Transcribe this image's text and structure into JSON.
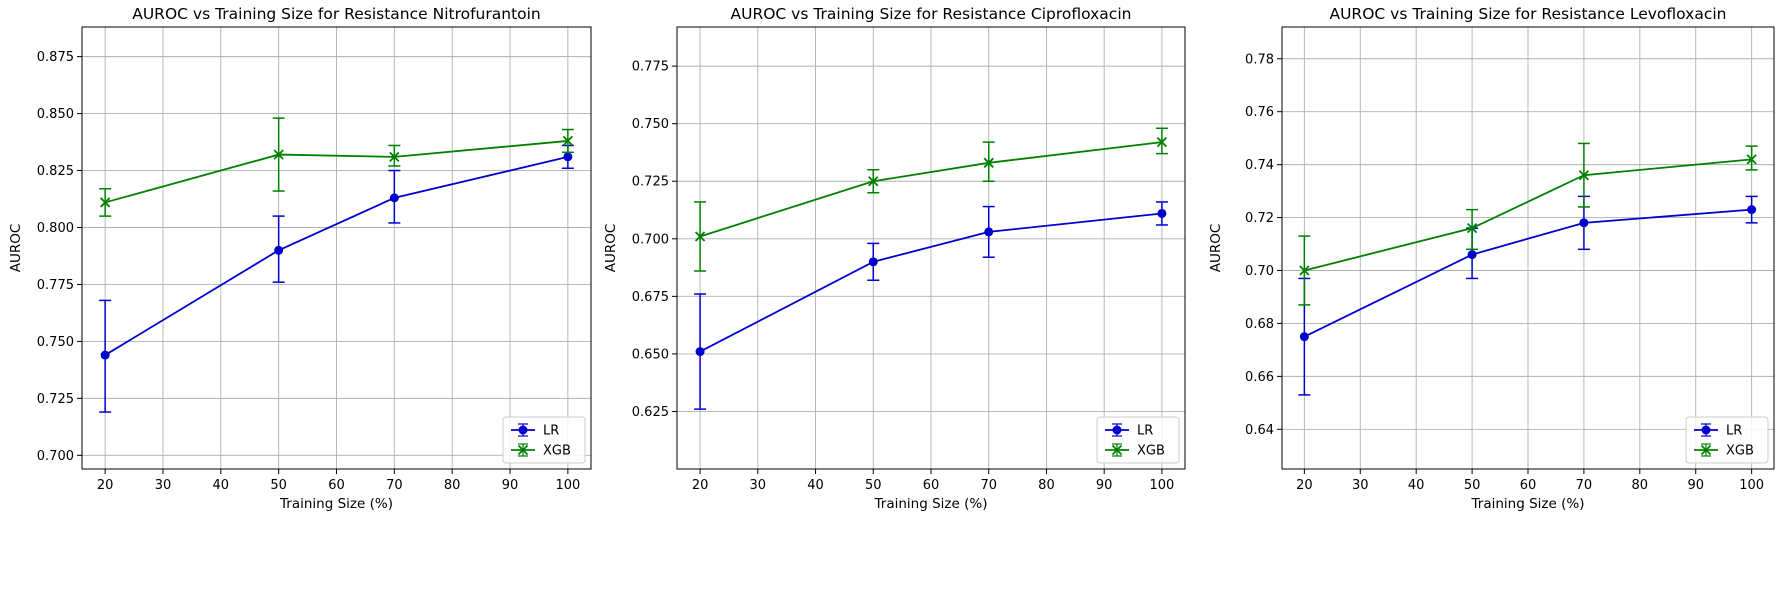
{
  "chart_data": [
    {
      "type": "line",
      "title": "AUROC vs Training Size for Resistance Nitrofurantoin",
      "xlabel": "Training Size (%)",
      "ylabel": "AUROC",
      "xlim": [
        16,
        104
      ],
      "ylim": [
        0.694,
        0.888
      ],
      "xticks": [
        20,
        30,
        40,
        50,
        60,
        70,
        80,
        90,
        100
      ],
      "yticks": [
        0.7,
        0.725,
        0.75,
        0.775,
        0.8,
        0.825,
        0.85,
        0.875
      ],
      "ytick_labels": [
        "0.700",
        "0.725",
        "0.750",
        "0.775",
        "0.800",
        "0.825",
        "0.850",
        "0.875"
      ],
      "grid": true,
      "legend_position": "lower-right",
      "x": [
        20,
        50,
        70,
        100
      ],
      "series": [
        {
          "name": "LR",
          "color": "#0000cc",
          "marker": "circle",
          "values": [
            0.744,
            0.79,
            0.813,
            0.831
          ],
          "err_low": [
            0.719,
            0.776,
            0.802,
            0.826
          ],
          "err_high": [
            0.768,
            0.805,
            0.825,
            0.836
          ]
        },
        {
          "name": "XGB",
          "color": "#008000",
          "marker": "x",
          "values": [
            0.811,
            0.832,
            0.831,
            0.838
          ],
          "err_low": [
            0.805,
            0.816,
            0.827,
            0.833
          ],
          "err_high": [
            0.817,
            0.848,
            0.836,
            0.843
          ]
        }
      ]
    },
    {
      "type": "line",
      "title": "AUROC vs Training Size for Resistance Ciprofloxacin",
      "xlabel": "Training Size (%)",
      "ylabel": "AUROC",
      "xlim": [
        16,
        104
      ],
      "ylim": [
        0.6,
        0.792
      ],
      "xticks": [
        20,
        30,
        40,
        50,
        60,
        70,
        80,
        90,
        100
      ],
      "yticks": [
        0.625,
        0.65,
        0.675,
        0.7,
        0.725,
        0.75,
        0.775
      ],
      "ytick_labels": [
        "0.625",
        "0.650",
        "0.675",
        "0.700",
        "0.725",
        "0.750",
        "0.775"
      ],
      "grid": true,
      "legend_position": "lower-right",
      "x": [
        20,
        50,
        70,
        100
      ],
      "series": [
        {
          "name": "LR",
          "color": "#0000cc",
          "marker": "circle",
          "values": [
            0.651,
            0.69,
            0.703,
            0.711
          ],
          "err_low": [
            0.626,
            0.682,
            0.692,
            0.706
          ],
          "err_high": [
            0.676,
            0.698,
            0.714,
            0.716
          ]
        },
        {
          "name": "XGB",
          "color": "#008000",
          "marker": "x",
          "values": [
            0.701,
            0.725,
            0.733,
            0.742
          ],
          "err_low": [
            0.686,
            0.72,
            0.725,
            0.737
          ],
          "err_high": [
            0.716,
            0.73,
            0.742,
            0.748
          ]
        }
      ]
    },
    {
      "type": "line",
      "title": "AUROC vs Training Size for Resistance Levofloxacin",
      "xlabel": "Training Size (%)",
      "ylabel": "AUROC",
      "xlim": [
        16,
        104
      ],
      "ylim": [
        0.625,
        0.792
      ],
      "xticks": [
        20,
        30,
        40,
        50,
        60,
        70,
        80,
        90,
        100
      ],
      "yticks": [
        0.64,
        0.66,
        0.68,
        0.7,
        0.72,
        0.74,
        0.76,
        0.78
      ],
      "ytick_labels": [
        "0.64",
        "0.66",
        "0.68",
        "0.70",
        "0.72",
        "0.74",
        "0.76",
        "0.78"
      ],
      "grid": true,
      "legend_position": "lower-right",
      "x": [
        20,
        50,
        70,
        100
      ],
      "series": [
        {
          "name": "LR",
          "color": "#0000cc",
          "marker": "circle",
          "values": [
            0.675,
            0.706,
            0.718,
            0.723
          ],
          "err_low": [
            0.653,
            0.697,
            0.708,
            0.718
          ],
          "err_high": [
            0.697,
            0.716,
            0.728,
            0.728
          ]
        },
        {
          "name": "XGB",
          "color": "#008000",
          "marker": "x",
          "values": [
            0.7,
            0.716,
            0.736,
            0.742
          ],
          "err_low": [
            0.687,
            0.708,
            0.724,
            0.738
          ],
          "err_high": [
            0.713,
            0.723,
            0.748,
            0.747
          ]
        }
      ]
    }
  ]
}
